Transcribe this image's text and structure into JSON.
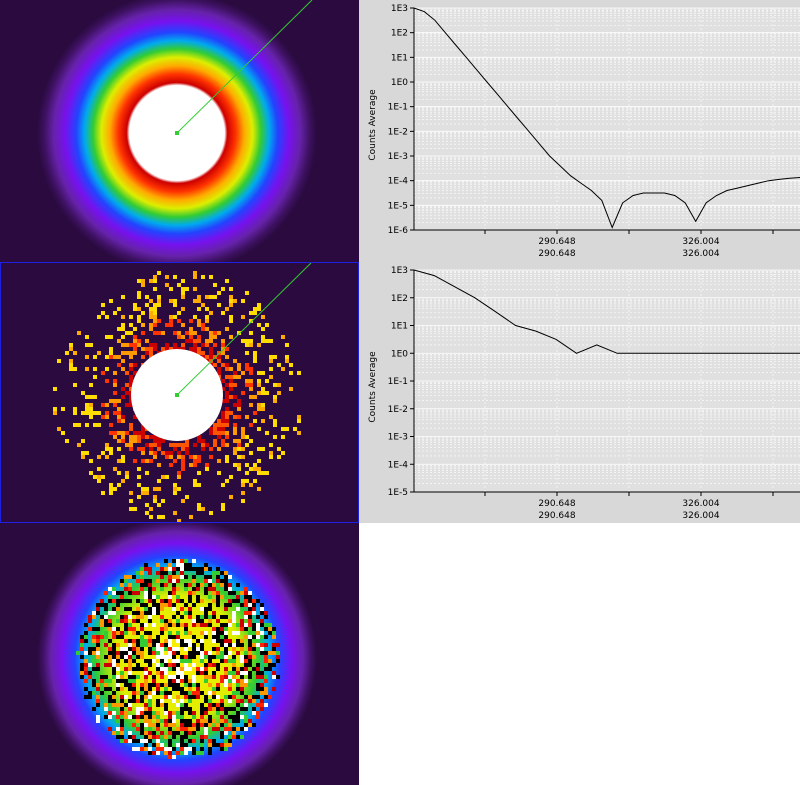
{
  "viewer": {
    "panels": [
      {
        "name": "model-image",
        "style": "rainbow-ring"
      },
      {
        "name": "data-image",
        "style": "sparse-hot"
      },
      {
        "name": "residual-image",
        "style": "noisy-rainbow"
      }
    ]
  },
  "colors": {
    "background": "#2a0a3f",
    "plot_background": "#d8d8d8",
    "grid": "#ffffff",
    "line": "#000000",
    "cursor_line": "#33cc33",
    "selection_border": "#2020e0"
  },
  "plots": [
    {
      "ylabel": "Counts Average",
      "ytick_labels": [
        "1E3",
        "1E2",
        "1E1",
        "1E0",
        "1E-1",
        "1E-2",
        "1E-3",
        "1E-4",
        "1E-5",
        "1E-6"
      ],
      "xtick_labels": [
        {
          "top": "290.648",
          "bottom": "290.648"
        },
        {
          "top": "326.004",
          "bottom": "326.004"
        }
      ]
    },
    {
      "ylabel": "Counts Average",
      "ytick_labels": [
        "1E3",
        "1E2",
        "1E1",
        "1E0",
        "1E-1",
        "1E-2",
        "1E-3",
        "1E-4",
        "1E-5"
      ],
      "xtick_labels": [
        {
          "top": "290.648",
          "bottom": "290.648"
        },
        {
          "top": "326.004",
          "bottom": "326.004"
        }
      ]
    }
  ],
  "chart_data": [
    {
      "type": "line",
      "ylabel": "Counts Average",
      "yscale": "log",
      "ylim": [
        1e-06,
        1000.0
      ],
      "x_tick_labels": [
        "290.648",
        "326.004"
      ],
      "series": [
        {
          "values_log10": [
            3.0,
            2.85,
            2.5,
            2.0,
            1.5,
            1.0,
            0.5,
            0.0,
            -0.5,
            -1.0,
            -1.5,
            -2.0,
            -2.5,
            -3.0,
            -3.4,
            -3.8,
            -4.1,
            -4.4,
            -4.8,
            -5.9,
            -4.9,
            -4.6,
            -4.5,
            -4.5,
            -4.5,
            -4.6,
            -4.9,
            -5.65,
            -4.9,
            -4.6,
            -4.4,
            -4.3,
            -4.2,
            -4.1,
            -4.0,
            -3.95,
            -3.9,
            -3.87
          ]
        }
      ]
    },
    {
      "type": "line",
      "ylabel": "Counts Average",
      "yscale": "log",
      "ylim": [
        1e-05,
        1000.0
      ],
      "x_tick_labels": [
        "290.648",
        "326.004"
      ],
      "series": [
        {
          "values_log10": [
            3.0,
            2.8,
            2.4,
            2.0,
            1.5,
            1.0,
            0.8,
            0.5,
            0.0,
            0.3,
            0.0,
            0.0,
            0.0,
            0.0,
            0.0,
            0.0,
            0.0,
            0.0,
            0.0,
            0.0
          ]
        }
      ]
    }
  ]
}
